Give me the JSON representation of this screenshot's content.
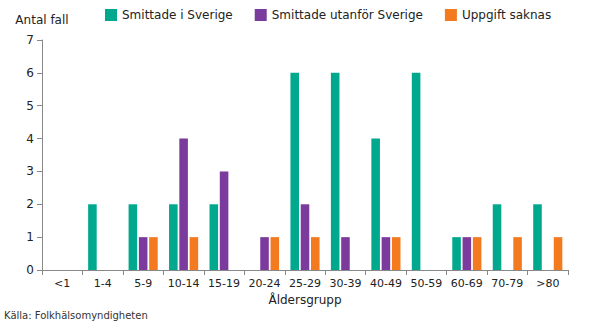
{
  "chart_data": {
    "type": "bar",
    "y_label": "Antal fall",
    "x_label": "Åldersgrupp",
    "source": "Källa: Folkhälsomyndigheten",
    "categories": [
      "<1",
      "1-4",
      "5-9",
      "10-14",
      "15-19",
      "20-24",
      "25-29",
      "30-39",
      "40-49",
      "50-59",
      "60-69",
      "70-79",
      ">80"
    ],
    "series": [
      {
        "name": "Smittade i Sverige",
        "color": "#00a88e",
        "values": [
          0,
          2,
          2,
          2,
          2,
          0,
          6,
          6,
          4,
          6,
          1,
          2,
          2
        ]
      },
      {
        "name": "Smittade utanför Sverige",
        "color": "#7a3b9c",
        "values": [
          0,
          0,
          1,
          4,
          3,
          1,
          2,
          1,
          1,
          0,
          1,
          0,
          0
        ]
      },
      {
        "name": "Uppgift saknas",
        "color": "#f47a20",
        "values": [
          0,
          0,
          1,
          1,
          0,
          1,
          1,
          0,
          1,
          0,
          1,
          1,
          1
        ]
      }
    ],
    "ylim": [
      0,
      7
    ],
    "yticks": [
      0,
      1,
      2,
      3,
      4,
      5,
      6,
      7
    ],
    "grid": false,
    "legend": "top"
  }
}
